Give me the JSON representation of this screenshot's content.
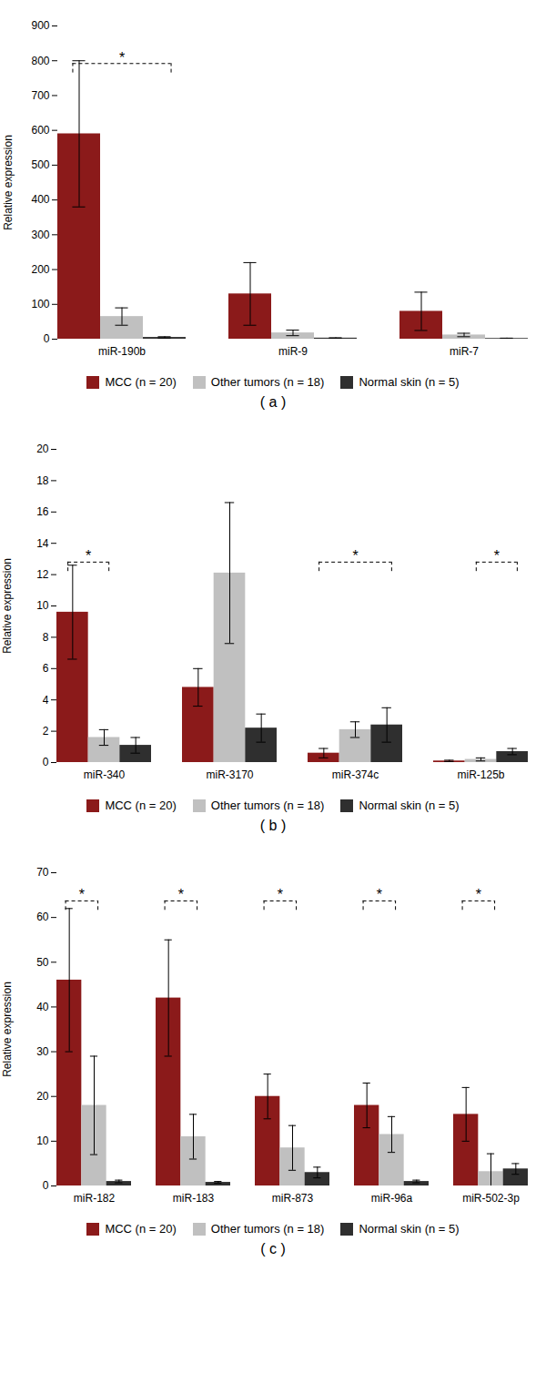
{
  "chart_data": [
    {
      "type": "bar",
      "title": "( a )",
      "ylabel": "Relative expression",
      "categories": [
        "miR-190b",
        "miR-9",
        "miR-7"
      ],
      "series": [
        {
          "name": "MCC (n = 20)",
          "color": "#8B1A1A",
          "values": [
            590,
            130,
            80
          ],
          "errors": [
            210,
            90,
            55
          ]
        },
        {
          "name": "Other tumors (n = 18)",
          "color": "#C0C0C0",
          "values": [
            65,
            18,
            12
          ],
          "errors": [
            25,
            8,
            5
          ]
        },
        {
          "name": "Normal skin (n = 5)",
          "color": "#2F2F2F",
          "values": [
            5,
            3,
            2
          ],
          "errors": [
            2,
            1,
            1
          ]
        }
      ],
      "ylim": [
        0,
        900
      ],
      "yticks": [
        0,
        100,
        200,
        300,
        400,
        500,
        600,
        700,
        800,
        900
      ],
      "grid": false,
      "legend": "bottom",
      "annotations": [
        {
          "text": "*",
          "category": "miR-190b",
          "from": "MCC (n = 20)",
          "to": "Normal skin (n = 5)",
          "y": 792
        }
      ]
    },
    {
      "type": "bar",
      "title": "( b )",
      "ylabel": "Relative expression",
      "categories": [
        "miR-340",
        "miR-3170",
        "miR-374c",
        "miR-125b"
      ],
      "series": [
        {
          "name": "MCC (n = 20)",
          "color": "#8B1A1A",
          "values": [
            9.6,
            4.8,
            0.6,
            0.1
          ],
          "errors": [
            3.0,
            1.2,
            0.3,
            0.05
          ]
        },
        {
          "name": "Other tumors (n = 18)",
          "color": "#C0C0C0",
          "values": [
            1.6,
            12.1,
            2.1,
            0.2
          ],
          "errors": [
            0.5,
            4.5,
            0.5,
            0.1
          ]
        },
        {
          "name": "Normal skin (n = 5)",
          "color": "#2F2F2F",
          "values": [
            1.1,
            2.2,
            2.4,
            0.7
          ],
          "errors": [
            0.5,
            0.9,
            1.1,
            0.2
          ]
        }
      ],
      "ylim": [
        0,
        20
      ],
      "yticks": [
        0,
        2,
        4,
        6,
        8,
        10,
        12,
        14,
        16,
        18,
        20
      ],
      "grid": false,
      "legend": "bottom",
      "annotations": [
        {
          "text": "*",
          "category": "miR-340",
          "from": "MCC (n = 20)",
          "to": "Other tumors (n = 18)",
          "y": 12.8
        },
        {
          "text": "*",
          "category": "miR-374c",
          "from": "MCC (n = 20)",
          "to": "Normal skin (n = 5)",
          "y": 12.8
        },
        {
          "text": "*",
          "category": "miR-125b",
          "from": "Other tumors (n = 18)",
          "to": "Normal skin (n = 5)",
          "y": 12.8
        }
      ]
    },
    {
      "type": "bar",
      "title": "( c )",
      "ylabel": "Relative expression",
      "categories": [
        "miR-182",
        "miR-183",
        "miR-873",
        "miR-96a",
        "miR-502-3p"
      ],
      "series": [
        {
          "name": "MCC (n = 20)",
          "color": "#8B1A1A",
          "values": [
            46,
            42,
            20,
            18,
            16
          ],
          "errors": [
            16,
            13,
            5,
            5,
            6
          ]
        },
        {
          "name": "Other tumors (n = 18)",
          "color": "#C0C0C0",
          "values": [
            18,
            11,
            8.5,
            11.5,
            3.2
          ],
          "errors": [
            11,
            5,
            5,
            4,
            4
          ]
        },
        {
          "name": "Normal skin (n = 5)",
          "color": "#2F2F2F",
          "values": [
            1.0,
            0.8,
            3.0,
            1.0,
            3.8
          ],
          "errors": [
            0.3,
            0.2,
            1.2,
            0.3,
            1.2
          ]
        }
      ],
      "ylim": [
        0,
        70
      ],
      "yticks": [
        0,
        10,
        20,
        30,
        40,
        50,
        60,
        70
      ],
      "grid": false,
      "legend": "bottom",
      "annotations": [
        {
          "text": "*",
          "category": "miR-182",
          "from": "MCC (n = 20)",
          "to": "Other tumors (n = 18)",
          "y": 63.7
        },
        {
          "text": "*",
          "category": "miR-183",
          "from": "MCC (n = 20)",
          "to": "Other tumors (n = 18)",
          "y": 63.7
        },
        {
          "text": "*",
          "category": "miR-873",
          "from": "MCC (n = 20)",
          "to": "Other tumors (n = 18)",
          "y": 63.7
        },
        {
          "text": "*",
          "category": "miR-96a",
          "from": "MCC (n = 20)",
          "to": "Other tumors (n = 18)",
          "y": 63.7
        },
        {
          "text": "*",
          "category": "miR-502-3p",
          "from": "MCC (n = 20)",
          "to": "Other tumors (n = 18)",
          "y": 63.7
        }
      ]
    }
  ]
}
